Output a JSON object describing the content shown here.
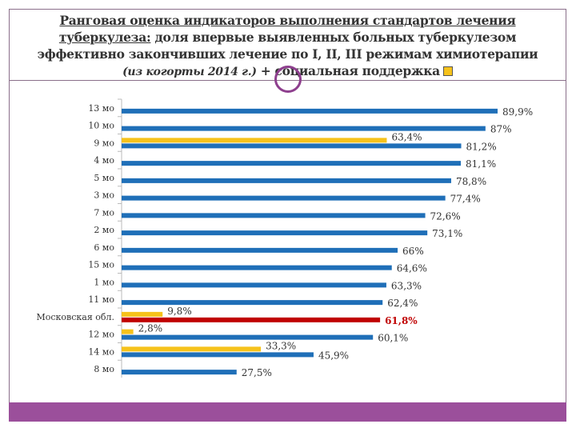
{
  "title": {
    "line1": "Ранговая оценка индикаторов выполнения стандартов лечения",
    "line2_underlined": "туберкулеза:",
    "line2_rest": " доля впервые выявленных больных туберкулезом",
    "line3": "эффективно закончивших лечение по I, II, III режимам химиотерапии",
    "line4_italic": "(из когорты 2014 г.)",
    "line4_rest": " + социальная поддержка"
  },
  "colors": {
    "main": "#1f6fb8",
    "highlight": "#c00000",
    "support": "#f6c21b",
    "footer": "#9b4f9b"
  },
  "chart_data": {
    "type": "bar",
    "orientation": "horizontal",
    "categories": [
      "13 мо",
      "10 мо",
      "9 мо",
      "4 мо",
      "5 мо",
      "3 мо",
      "7 мо",
      "2 мо",
      "6 мо",
      "15 мо",
      "1 мо",
      "11 мо",
      "Московская обл.",
      "12 мо",
      "14 мо",
      "8 мо"
    ],
    "series": [
      {
        "values": [
          89.9,
          87,
          81.2,
          81.1,
          78.8,
          77.4,
          72.6,
          73.1,
          66,
          64.6,
          63.3,
          62.4,
          61.8,
          60.1,
          45.9,
          27.5
        ],
        "labels": [
          "89,9%",
          "87%",
          "81,2%",
          "81,1%",
          "78,8%",
          "77,4%",
          "72,6%",
          "73,1%",
          "66%",
          "64,6%",
          "63,3%",
          "62,4%",
          "61,8%",
          "60,1%",
          "45,9%",
          "27,5%"
        ]
      },
      {
        "values": [
          null,
          null,
          63.4,
          null,
          null,
          null,
          null,
          null,
          null,
          null,
          null,
          null,
          9.8,
          2.8,
          33.3,
          null
        ],
        "labels": [
          null,
          null,
          "63,4%",
          null,
          null,
          null,
          null,
          null,
          null,
          null,
          null,
          null,
          "9,8%",
          "2,8%",
          "33,3%",
          null
        ]
      }
    ],
    "highlight_category": "Московская обл.",
    "xlim": [
      0,
      100
    ],
    "grid": false
  }
}
